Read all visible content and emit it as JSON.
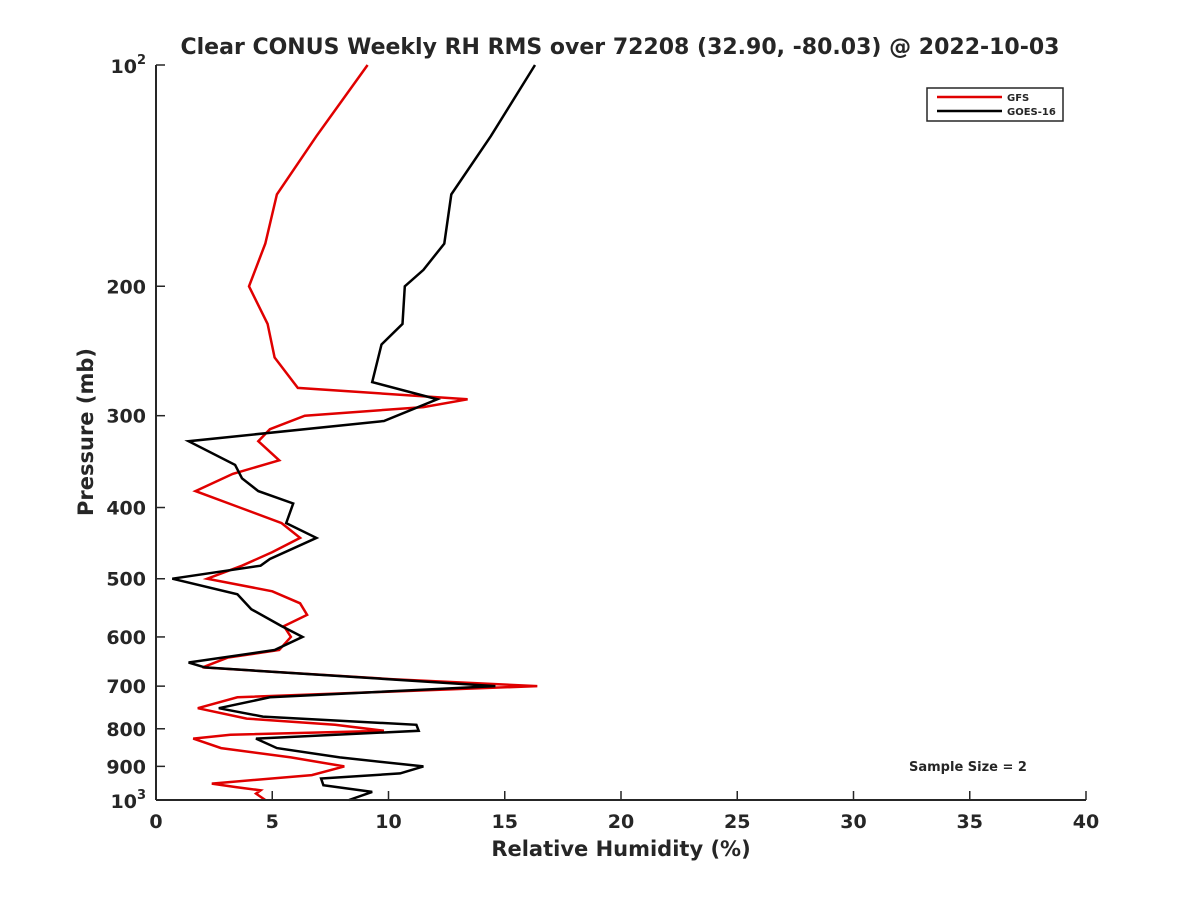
{
  "chart_data": {
    "type": "line",
    "title": "Clear CONUS Weekly RH RMS over 72208 (32.90, -80.03) @ 2022-10-03",
    "xlabel": "Relative Humidity (%)",
    "ylabel": "Pressure (mb)",
    "xlim": [
      0,
      40
    ],
    "ylim": [
      100,
      1000
    ],
    "y_scale": "log",
    "y_reversed": true,
    "grid": false,
    "legend_position": "top-right",
    "x_ticks": [
      0,
      5,
      10,
      15,
      20,
      25,
      30,
      35,
      40
    ],
    "y_ticks": [
      {
        "value": 100,
        "base": "10",
        "exp": "2"
      },
      {
        "value": 200,
        "label": "200"
      },
      {
        "value": 300,
        "label": "300"
      },
      {
        "value": 400,
        "label": "400"
      },
      {
        "value": 500,
        "label": "500"
      },
      {
        "value": 600,
        "label": "600"
      },
      {
        "value": 700,
        "label": "700"
      },
      {
        "value": 800,
        "label": "800"
      },
      {
        "value": 900,
        "label": "900"
      },
      {
        "value": 1000,
        "base": "10",
        "exp": "3"
      }
    ],
    "series": [
      {
        "name": "GFS",
        "color": "#e00000",
        "points": [
          [
            9.1,
            100
          ],
          [
            6.9,
            125
          ],
          [
            5.2,
            150
          ],
          [
            4.7,
            175
          ],
          [
            4.0,
            200
          ],
          [
            4.8,
            225
          ],
          [
            5.1,
            250
          ],
          [
            6.1,
            275
          ],
          [
            13.4,
            285
          ],
          [
            11.5,
            292
          ],
          [
            6.4,
            300
          ],
          [
            4.9,
            313
          ],
          [
            4.4,
            325
          ],
          [
            5.3,
            345
          ],
          [
            3.3,
            360
          ],
          [
            1.7,
            380
          ],
          [
            3.6,
            400
          ],
          [
            5.4,
            420
          ],
          [
            6.2,
            440
          ],
          [
            5.0,
            460
          ],
          [
            3.7,
            480
          ],
          [
            2.2,
            500
          ],
          [
            5.0,
            520
          ],
          [
            6.2,
            540
          ],
          [
            6.5,
            560
          ],
          [
            5.5,
            580
          ],
          [
            5.8,
            600
          ],
          [
            5.3,
            625
          ],
          [
            3.1,
            640
          ],
          [
            2.0,
            660
          ],
          [
            10.2,
            685
          ],
          [
            16.4,
            700
          ],
          [
            3.5,
            725
          ],
          [
            1.8,
            750
          ],
          [
            3.9,
            775
          ],
          [
            7.7,
            790
          ],
          [
            9.8,
            805
          ],
          [
            3.2,
            815
          ],
          [
            1.6,
            825
          ],
          [
            2.8,
            850
          ],
          [
            5.8,
            875
          ],
          [
            8.1,
            900
          ],
          [
            6.7,
            925
          ],
          [
            2.4,
            950
          ],
          [
            3.4,
            960
          ],
          [
            4.5,
            970
          ],
          [
            4.3,
            980
          ],
          [
            4.7,
            1000
          ]
        ]
      },
      {
        "name": "GOES-16",
        "color": "#000000",
        "points": [
          [
            16.3,
            100
          ],
          [
            14.4,
            125
          ],
          [
            12.7,
            150
          ],
          [
            12.4,
            175
          ],
          [
            11.5,
            190
          ],
          [
            10.7,
            200
          ],
          [
            10.6,
            225
          ],
          [
            9.7,
            240
          ],
          [
            9.3,
            270
          ],
          [
            12.1,
            285
          ],
          [
            9.8,
            305
          ],
          [
            1.4,
            325
          ],
          [
            3.4,
            350
          ],
          [
            3.7,
            365
          ],
          [
            4.4,
            380
          ],
          [
            5.9,
            395
          ],
          [
            5.6,
            420
          ],
          [
            6.9,
            440
          ],
          [
            4.9,
            470
          ],
          [
            4.5,
            480
          ],
          [
            0.7,
            500
          ],
          [
            3.5,
            525
          ],
          [
            4.1,
            550
          ],
          [
            5.4,
            580
          ],
          [
            6.3,
            600
          ],
          [
            5.1,
            625
          ],
          [
            1.4,
            650
          ],
          [
            2.1,
            660
          ],
          [
            14.6,
            700
          ],
          [
            4.9,
            725
          ],
          [
            2.7,
            750
          ],
          [
            4.6,
            770
          ],
          [
            11.2,
            790
          ],
          [
            11.3,
            805
          ],
          [
            4.3,
            825
          ],
          [
            5.2,
            850
          ],
          [
            7.9,
            875
          ],
          [
            11.5,
            900
          ],
          [
            10.5,
            920
          ],
          [
            7.1,
            935
          ],
          [
            7.2,
            955
          ],
          [
            9.3,
            975
          ],
          [
            8.3,
            1000
          ]
        ]
      }
    ],
    "annotations": [
      {
        "text": "Sample Size = 2"
      }
    ]
  }
}
